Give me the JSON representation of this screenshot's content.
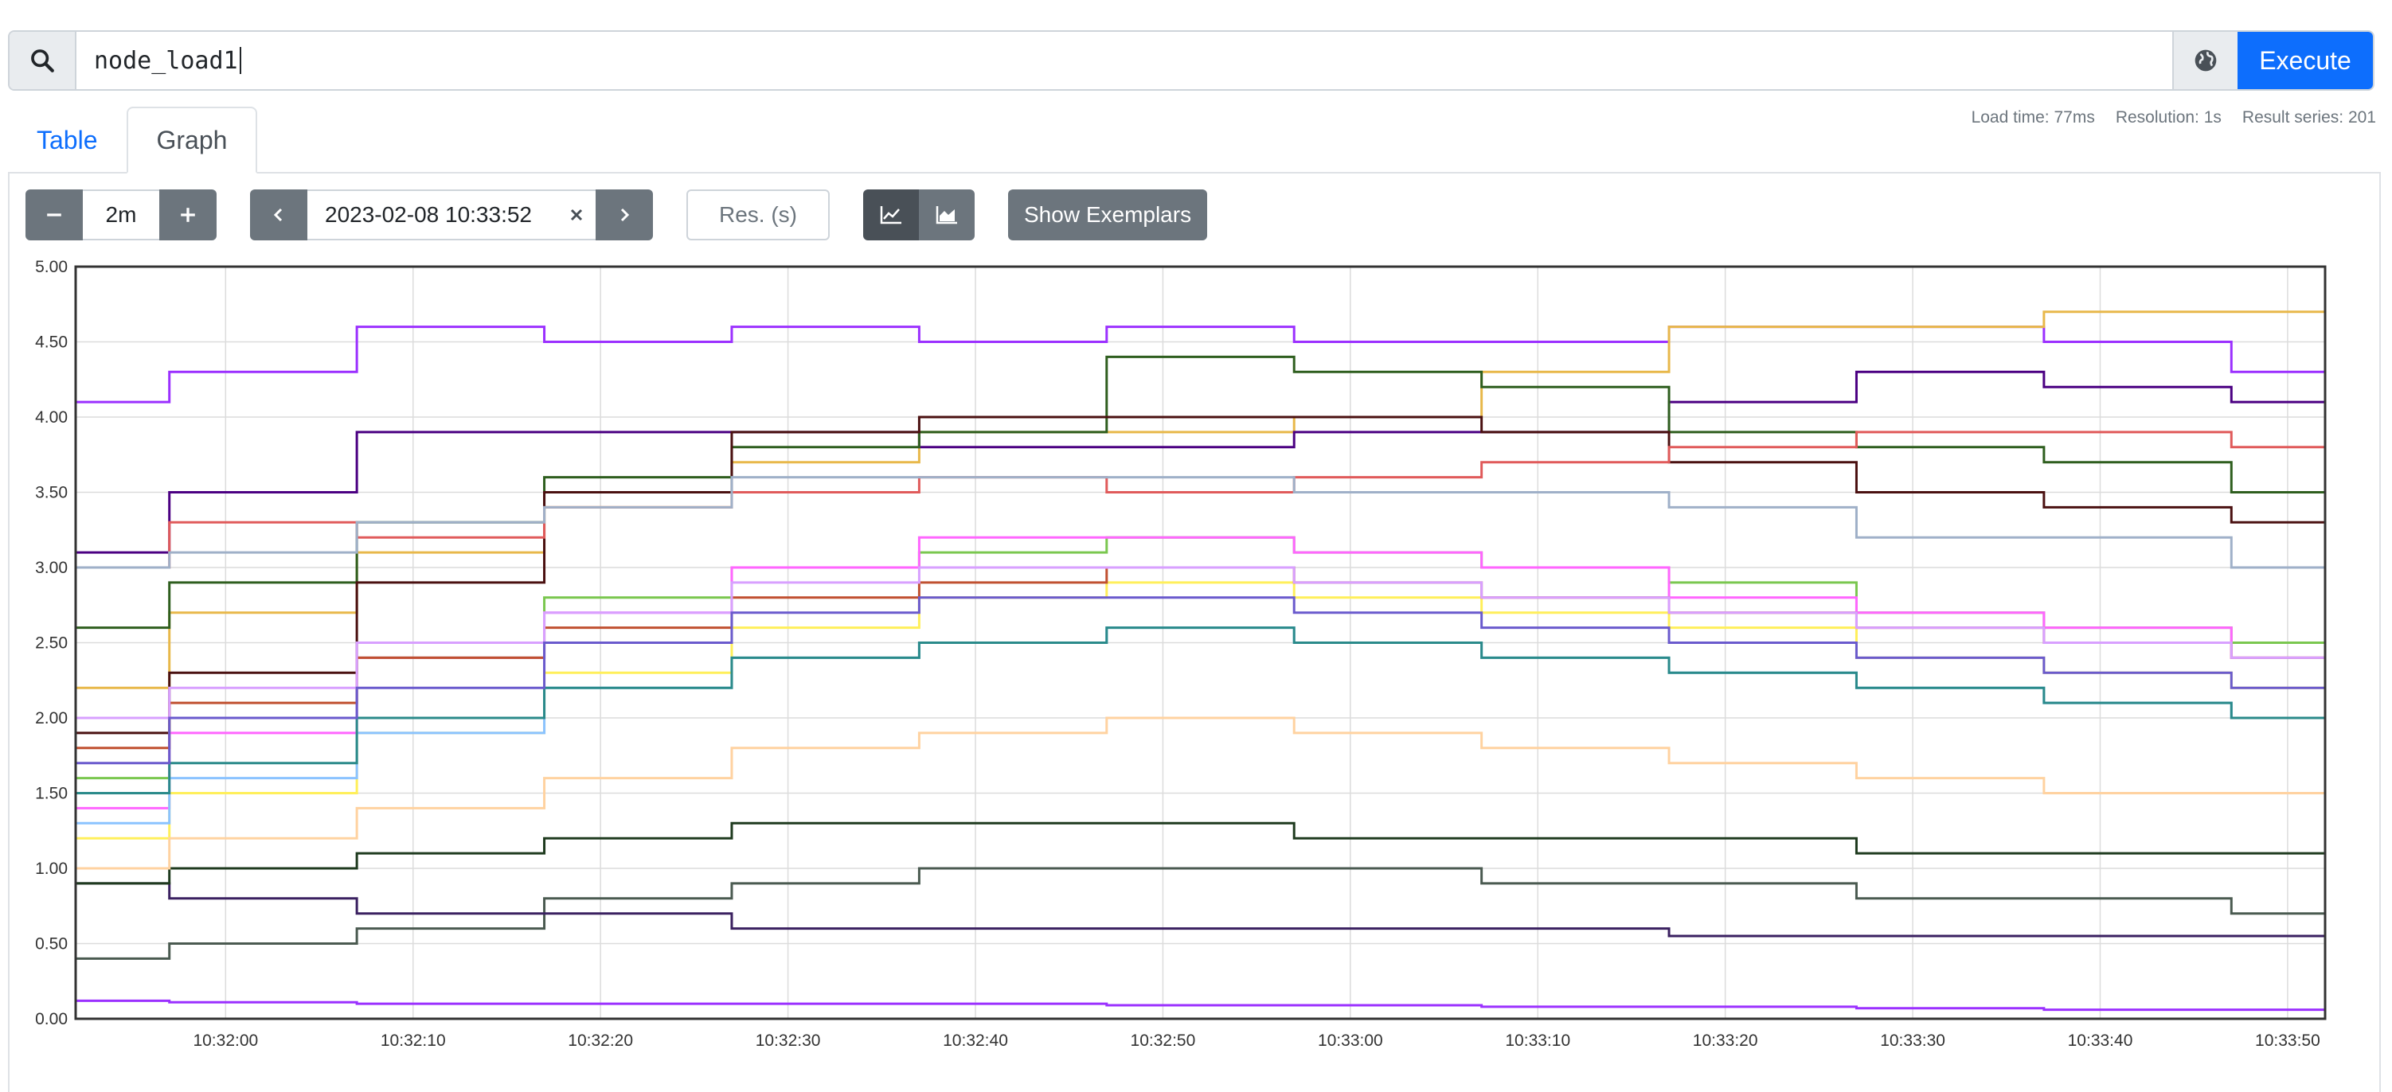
{
  "query": {
    "value": "node_load1",
    "execute_label": "Execute"
  },
  "tabs": [
    {
      "label": "Table"
    },
    {
      "label": "Graph"
    }
  ],
  "stats": {
    "load_time": "Load time: 77ms",
    "resolution": "Resolution: 1s",
    "result_series": "Result series: 201"
  },
  "controls": {
    "range": "2m",
    "end_time": "2023-02-08 10:33:52",
    "resolution_placeholder": "Res. (s)",
    "show_exemplars": "Show Exemplars"
  },
  "chart_data": {
    "type": "line",
    "series_count": 201,
    "y_ticks": [
      "0.00",
      "0.50",
      "1.00",
      "1.50",
      "2.00",
      "2.50",
      "3.00",
      "3.50",
      "4.00",
      "4.50",
      "5.00"
    ],
    "ylim": [
      0,
      5
    ],
    "x_ticks": [
      "10:32:00",
      "10:32:10",
      "10:32:20",
      "10:32:30",
      "10:32:40",
      "10:32:50",
      "10:33:00",
      "10:33:10",
      "10:33:20",
      "10:33:30",
      "10:33:40",
      "10:33:50"
    ],
    "xlim": [
      "10:31:52",
      "10:33:52"
    ],
    "grid": true,
    "legend": "none",
    "series": [
      {
        "color": "#9b30ff",
        "values": [
          4.1,
          4.3,
          4.6,
          4.5,
          4.6,
          4.5,
          4.6,
          4.5,
          4.5,
          4.6,
          4.6,
          4.5,
          4.3
        ]
      },
      {
        "color": "#e8b84a",
        "values": [
          2.2,
          2.7,
          3.1,
          3.4,
          3.7,
          3.9,
          3.9,
          4.0,
          4.3,
          4.6,
          4.6,
          4.7,
          4.7
        ]
      },
      {
        "color": "#4b0082",
        "values": [
          3.1,
          3.5,
          3.9,
          3.9,
          3.9,
          3.8,
          3.8,
          3.9,
          3.9,
          4.1,
          4.3,
          4.2,
          4.1
        ]
      },
      {
        "color": "#2e5e1e",
        "values": [
          2.6,
          2.9,
          3.3,
          3.6,
          3.8,
          3.9,
          4.4,
          4.3,
          4.2,
          3.9,
          3.8,
          3.7,
          3.5
        ]
      },
      {
        "color": "#4a1010",
        "values": [
          1.9,
          2.3,
          2.9,
          3.5,
          3.9,
          4.0,
          4.0,
          4.0,
          3.9,
          3.7,
          3.5,
          3.4,
          3.3
        ]
      },
      {
        "color": "#e05a5a",
        "values": [
          3.0,
          3.3,
          3.2,
          3.4,
          3.5,
          3.6,
          3.5,
          3.6,
          3.7,
          3.8,
          3.9,
          3.9,
          3.8
        ]
      },
      {
        "color": "#9fb0c8",
        "values": [
          3.0,
          3.1,
          3.3,
          3.4,
          3.6,
          3.6,
          3.6,
          3.5,
          3.5,
          3.4,
          3.2,
          3.2,
          3.0
        ]
      },
      {
        "color": "#7ac74f",
        "values": [
          1.6,
          2.0,
          2.4,
          2.8,
          3.0,
          3.1,
          3.2,
          3.1,
          3.0,
          2.9,
          2.7,
          2.6,
          2.5
        ]
      },
      {
        "color": "#ff66ff",
        "values": [
          1.4,
          1.9,
          2.4,
          2.7,
          3.0,
          3.2,
          3.2,
          3.1,
          3.0,
          2.8,
          2.7,
          2.6,
          2.4
        ]
      },
      {
        "color": "#ffef5a",
        "values": [
          1.2,
          1.5,
          1.9,
          2.3,
          2.6,
          2.8,
          2.9,
          2.8,
          2.7,
          2.6,
          2.4,
          2.3,
          2.2
        ]
      },
      {
        "color": "#4a5a50",
        "values": [
          0.4,
          0.5,
          0.6,
          0.8,
          0.9,
          1.0,
          1.0,
          1.0,
          0.9,
          0.9,
          0.8,
          0.8,
          0.7
        ]
      },
      {
        "color": "#c05030",
        "values": [
          1.8,
          2.1,
          2.4,
          2.6,
          2.8,
          2.9,
          3.0,
          2.9,
          2.8,
          2.7,
          2.6,
          2.5,
          2.4
        ]
      },
      {
        "color": "#3a2060",
        "values": [
          0.9,
          0.8,
          0.7,
          0.7,
          0.6,
          0.6,
          0.6,
          0.6,
          0.6,
          0.55,
          0.55,
          0.55,
          0.55
        ]
      },
      {
        "color": "#9b30ff",
        "values": [
          0.12,
          0.11,
          0.1,
          0.1,
          0.1,
          0.1,
          0.09,
          0.09,
          0.08,
          0.08,
          0.07,
          0.06,
          0.06
        ]
      },
      {
        "color": "#8bc3ff",
        "values": [
          1.3,
          1.6,
          1.9,
          2.2,
          2.4,
          2.5,
          2.6,
          2.5,
          2.4,
          2.3,
          2.2,
          2.1,
          2.0
        ]
      },
      {
        "color": "#1e3a1e",
        "values": [
          0.9,
          1.0,
          1.1,
          1.2,
          1.3,
          1.3,
          1.3,
          1.2,
          1.2,
          1.2,
          1.1,
          1.1,
          1.1
        ]
      },
      {
        "color": "#d8a0ff",
        "values": [
          2.0,
          2.2,
          2.5,
          2.7,
          2.9,
          3.0,
          3.0,
          2.9,
          2.8,
          2.7,
          2.6,
          2.5,
          2.4
        ]
      },
      {
        "color": "#ffd2a0",
        "values": [
          1.0,
          1.2,
          1.4,
          1.6,
          1.8,
          1.9,
          2.0,
          1.9,
          1.8,
          1.7,
          1.6,
          1.5,
          1.5
        ]
      },
      {
        "color": "#2a8a8a",
        "values": [
          1.5,
          1.7,
          2.0,
          2.2,
          2.4,
          2.5,
          2.6,
          2.5,
          2.4,
          2.3,
          2.2,
          2.1,
          2.0
        ]
      },
      {
        "color": "#6a5acd",
        "values": [
          1.7,
          2.0,
          2.2,
          2.5,
          2.7,
          2.8,
          2.8,
          2.7,
          2.6,
          2.5,
          2.4,
          2.3,
          2.2
        ]
      }
    ]
  }
}
